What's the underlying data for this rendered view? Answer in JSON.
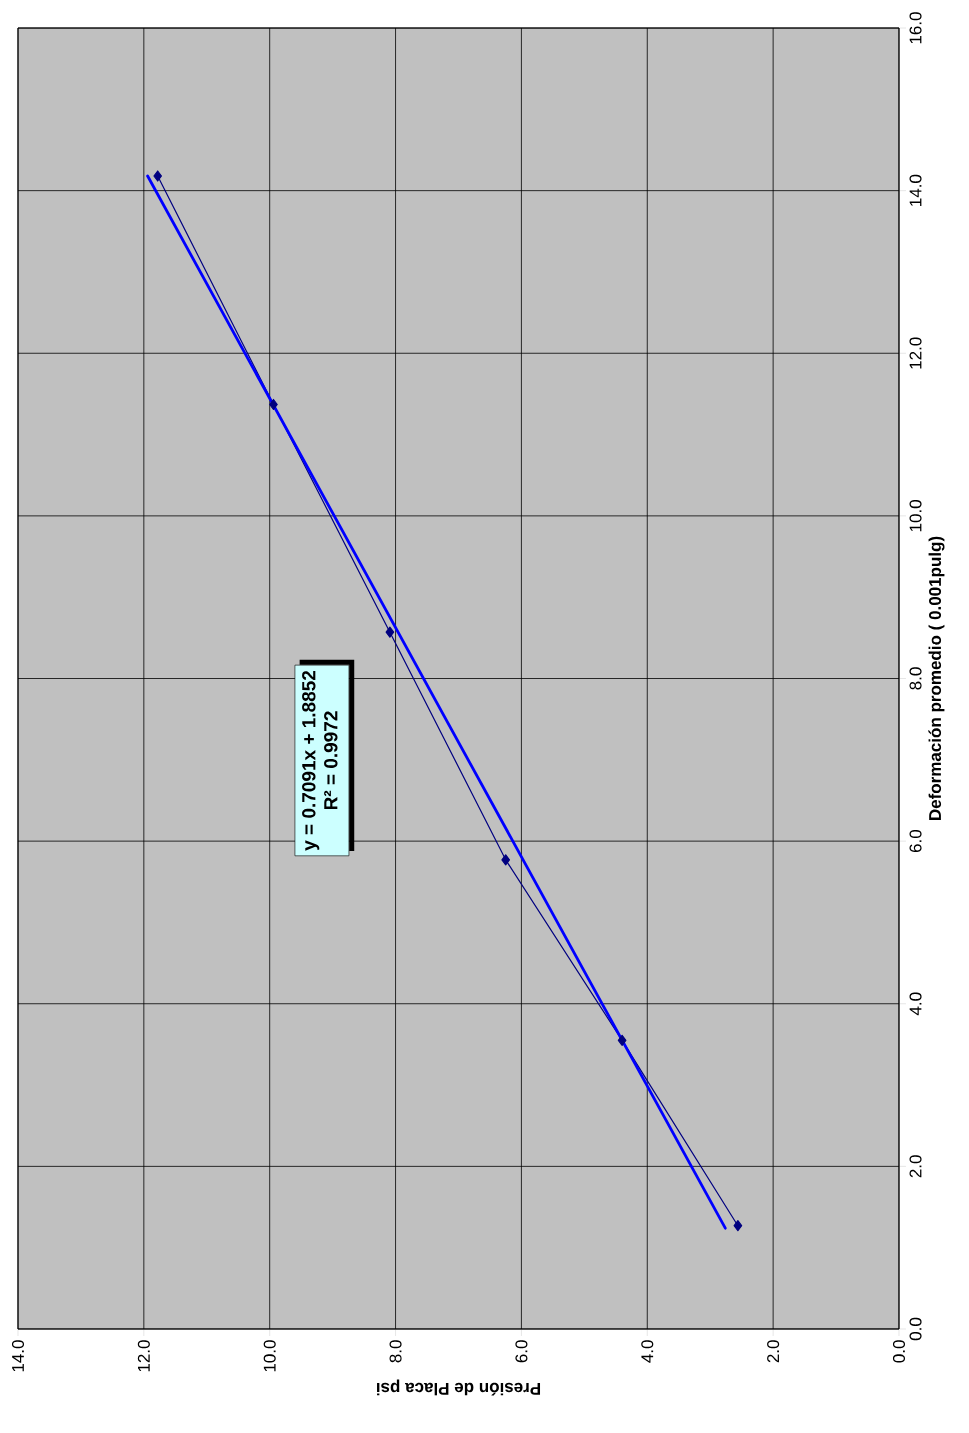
{
  "chart_data": {
    "type": "line",
    "xlabel": "Presión de Placa psi",
    "ylabel": "Deformación promedio ( 0.001pulg)",
    "series": [
      {
        "color": "#000080",
        "marker": "diamond",
        "x": [
          2.56,
          4.4,
          6.25,
          8.09,
          9.94,
          11.78
        ],
        "values": [
          1.27,
          3.55,
          5.77,
          8.57,
          11.37,
          14.18
        ]
      },
      {
        "color": "#0000ff",
        "x": [
          2.76,
          11.94
        ],
        "values": [
          1.24,
          14.18
        ]
      }
    ],
    "annotations": [
      "y = 0.7091x + 1.8852",
      "R² = 0.9972"
    ],
    "xlim": [
      14,
      0
    ],
    "ylim": [
      0,
      16
    ],
    "xticks": [
      {
        "value": 0,
        "label": "0.0"
      },
      {
        "value": 2,
        "label": "2.0"
      },
      {
        "value": 4,
        "label": "4.0"
      },
      {
        "value": 6,
        "label": "6.0"
      },
      {
        "value": 8,
        "label": "8.0"
      },
      {
        "value": 10,
        "label": "10.0"
      },
      {
        "value": 12,
        "label": "12.0"
      },
      {
        "value": 14,
        "label": "14.0"
      }
    ],
    "yticks": [
      {
        "value": 0,
        "label": "0.0"
      },
      {
        "value": 2,
        "label": "2.0"
      },
      {
        "value": 4,
        "label": "4.0"
      },
      {
        "value": 6,
        "label": "6.0"
      },
      {
        "value": 8,
        "label": "8.0"
      },
      {
        "value": 10,
        "label": "10.0"
      },
      {
        "value": 12,
        "label": "12.0"
      },
      {
        "value": 14,
        "label": "14.0"
      },
      {
        "value": 16,
        "label": "16.0"
      }
    ],
    "grid": true
  }
}
